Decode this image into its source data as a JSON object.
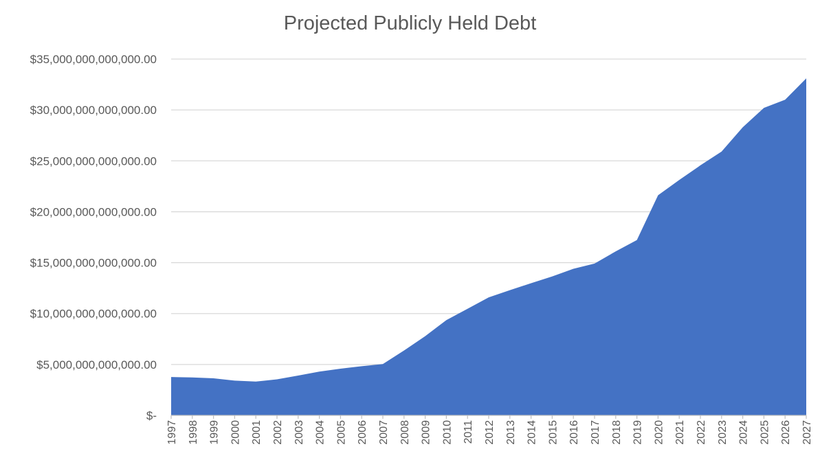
{
  "chart_data": {
    "type": "area",
    "title": "Projected Publicly Held Debt",
    "xlabel": "",
    "ylabel": "",
    "x": [
      "1997",
      "1998",
      "1999",
      "2000",
      "2001",
      "2002",
      "2003",
      "2004",
      "2005",
      "2006",
      "2007",
      "2008",
      "2009",
      "2010",
      "2011",
      "2012",
      "2013",
      "2014",
      "2015",
      "2016",
      "2017",
      "2018",
      "2019",
      "2020",
      "2021",
      "2022",
      "2023",
      "2024",
      "2025",
      "2026",
      "2027"
    ],
    "series": [
      {
        "values": [
          3770000000000,
          3730000000000,
          3640000000000,
          3410000000000,
          3320000000000,
          3540000000000,
          3910000000000,
          4300000000000,
          4590000000000,
          4830000000000,
          5040000000000,
          6370000000000,
          7780000000000,
          9360000000000,
          10470000000000,
          11590000000000,
          12300000000000,
          12980000000000,
          13650000000000,
          14400000000000,
          14910000000000,
          16110000000000,
          17220000000000,
          21620000000000,
          23120000000000,
          24560000000000,
          25910000000000,
          28300000000000,
          30200000000000,
          31000000000000,
          33100000000000
        ],
        "color": "#4472c4"
      }
    ],
    "ylim": [
      0,
      35000000000000
    ],
    "y_ticks": [
      {
        "value": 0,
        "label": "$-"
      },
      {
        "value": 5000000000000,
        "label": "$5,000,000,000,000.00"
      },
      {
        "value": 10000000000000,
        "label": "$10,000,000,000,000.00"
      },
      {
        "value": 15000000000000,
        "label": "$15,000,000,000,000.00"
      },
      {
        "value": 20000000000000,
        "label": "$20,000,000,000,000.00"
      },
      {
        "value": 25000000000000,
        "label": "$25,000,000,000,000.00"
      },
      {
        "value": 30000000000000,
        "label": "$30,000,000,000,000.00"
      },
      {
        "value": 35000000000000,
        "label": "$35,000,000,000,000.00"
      }
    ],
    "grid": true,
    "legend": "none"
  }
}
